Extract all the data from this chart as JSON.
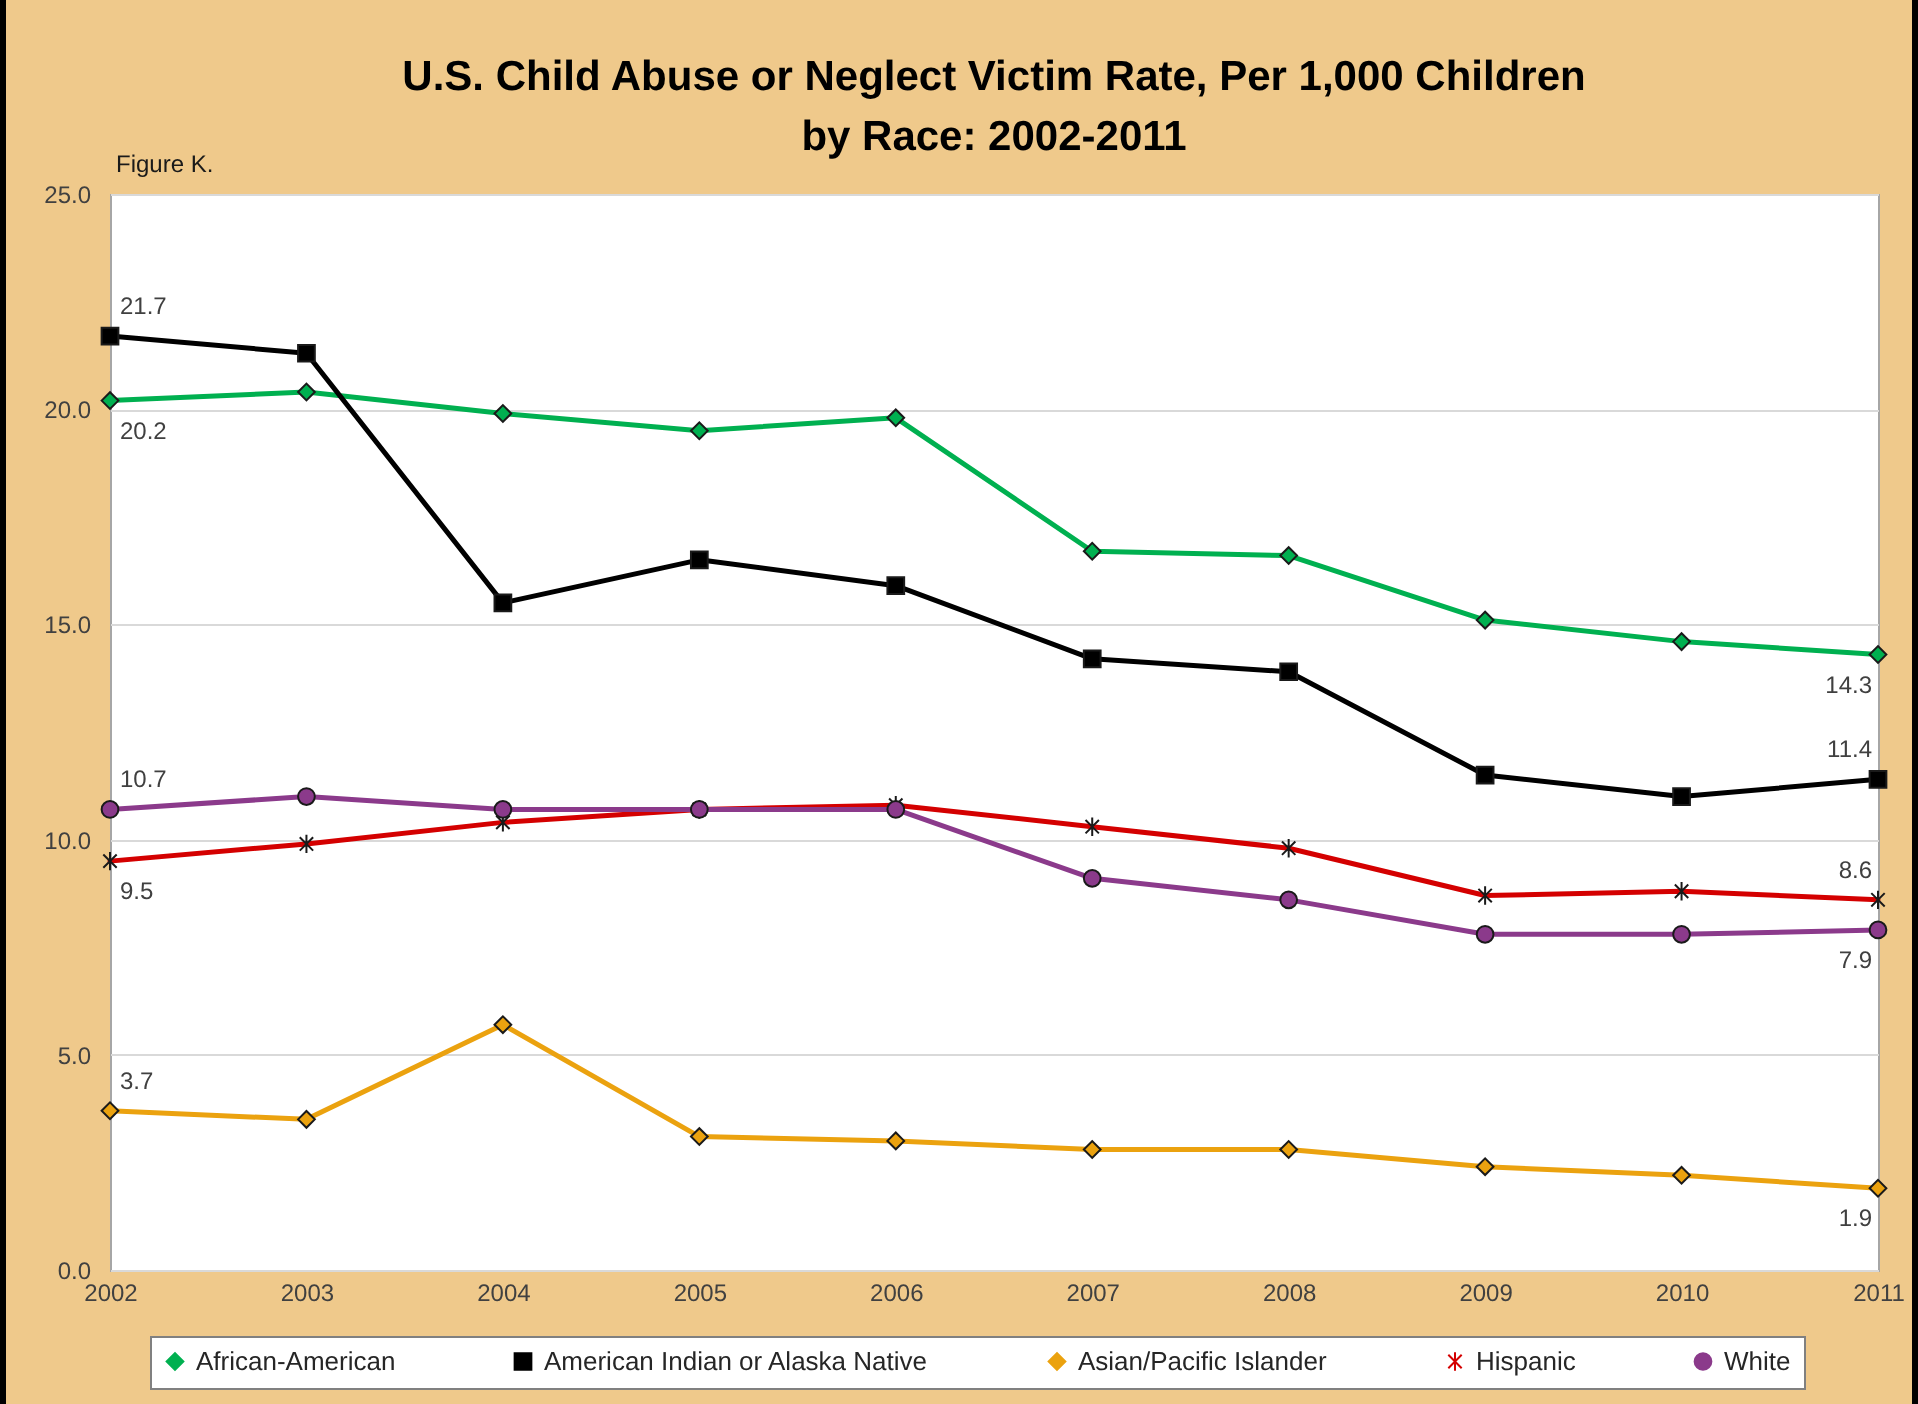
{
  "chart_data": {
    "type": "line",
    "title": "U.S. Child Abuse or Neglect Victim Rate, Per 1,000 Children\nby Race: 2002-2011",
    "annotations": [
      "Figure K."
    ],
    "x": [
      2002,
      2003,
      2004,
      2005,
      2006,
      2007,
      2008,
      2009,
      2010,
      2011
    ],
    "xlim": [
      2002,
      2011
    ],
    "xticks": [
      2002,
      2003,
      2004,
      2005,
      2006,
      2007,
      2008,
      2009,
      2010,
      2011
    ],
    "ylim": [
      0,
      25
    ],
    "yticks": [
      {
        "value": 0,
        "label": "0.0"
      },
      {
        "value": 5,
        "label": "5.0"
      },
      {
        "value": 10,
        "label": "10.0"
      },
      {
        "value": 15,
        "label": "15.0"
      },
      {
        "value": 20,
        "label": "20.0"
      },
      {
        "value": 25,
        "label": "25.0"
      }
    ],
    "grid": "y",
    "legend": "bottom",
    "series": [
      {
        "name": "African-American",
        "color": "#00b050",
        "marker": "diamond",
        "values": [
          20.2,
          20.4,
          19.9,
          19.5,
          19.8,
          16.7,
          16.6,
          15.1,
          14.6,
          14.3
        ],
        "value_labels": [
          "20.2",
          null,
          null,
          null,
          null,
          null,
          null,
          null,
          null,
          "14.3"
        ]
      },
      {
        "name": "American Indian or Alaska Native",
        "color": "#000000",
        "marker": "square",
        "values": [
          21.7,
          21.3,
          15.5,
          16.5,
          15.9,
          14.2,
          13.9,
          11.5,
          11.0,
          11.4
        ],
        "value_labels": [
          "21.7",
          null,
          null,
          null,
          null,
          null,
          null,
          null,
          null,
          "11.4"
        ]
      },
      {
        "name": "Asian/Pacific Islander",
        "color": "#eba20f",
        "marker": "diamond",
        "values": [
          3.7,
          3.5,
          5.7,
          3.1,
          3.0,
          2.8,
          2.8,
          2.4,
          2.2,
          1.9
        ],
        "value_labels": [
          "3.7",
          null,
          null,
          null,
          null,
          null,
          null,
          null,
          null,
          "1.9"
        ]
      },
      {
        "name": "Hispanic",
        "color": "#d40000",
        "marker": "cross",
        "values": [
          9.5,
          9.9,
          10.4,
          10.7,
          10.8,
          10.3,
          9.8,
          8.7,
          8.8,
          8.6
        ],
        "value_labels": [
          "9.5",
          null,
          null,
          null,
          null,
          null,
          null,
          null,
          null,
          "8.6"
        ]
      },
      {
        "name": "White",
        "color": "#8b3a8b",
        "marker": "circle",
        "values": [
          10.7,
          11.0,
          10.7,
          10.7,
          10.7,
          9.1,
          8.6,
          7.8,
          7.8,
          7.9
        ],
        "value_labels": [
          "10.7",
          null,
          null,
          null,
          null,
          null,
          null,
          null,
          null,
          "7.9"
        ]
      }
    ]
  }
}
